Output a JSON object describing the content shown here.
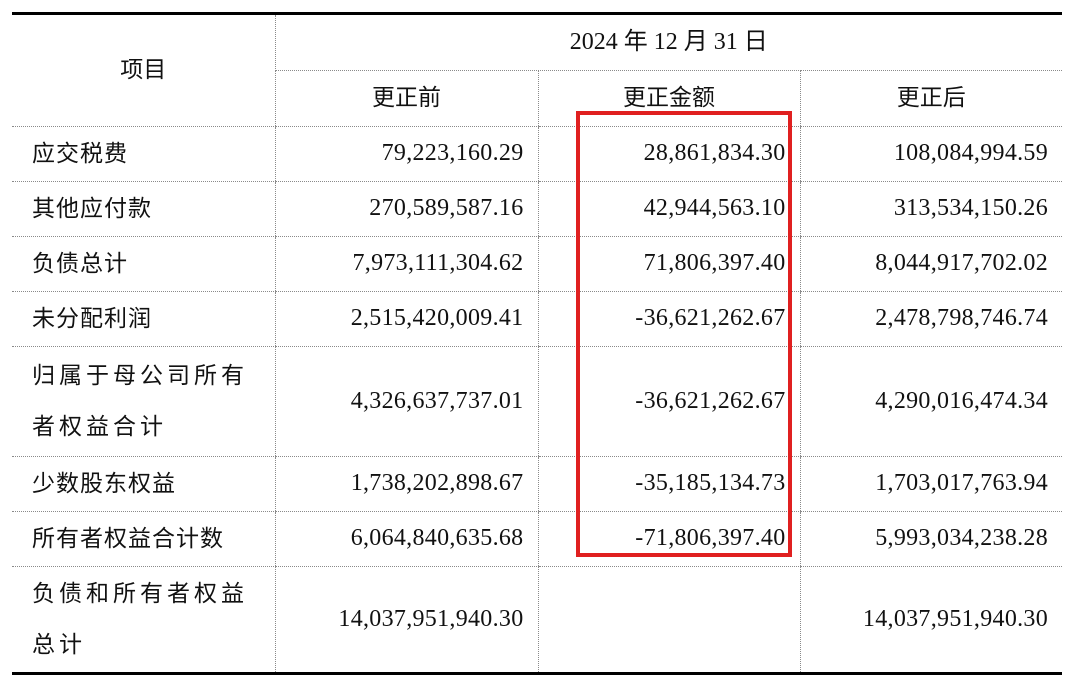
{
  "table": {
    "header": {
      "item_label": "项目",
      "date_label": "2024 年 12 月 31 日",
      "columns": [
        "更正前",
        "更正金额",
        "更正后"
      ]
    },
    "rows": [
      {
        "label": "应交税费",
        "before": "79,223,160.29",
        "adjustment": "28,861,834.30",
        "after": "108,084,994.59"
      },
      {
        "label": "其他应付款",
        "before": "270,589,587.16",
        "adjustment": "42,944,563.10",
        "after": "313,534,150.26"
      },
      {
        "label": "负债总计",
        "before": "7,973,111,304.62",
        "adjustment": "71,806,397.40",
        "after": "8,044,917,702.02"
      },
      {
        "label": "未分配利润",
        "before": "2,515,420,009.41",
        "adjustment": "-36,621,262.67",
        "after": "2,478,798,746.74"
      },
      {
        "label": "归属于母公司所有者权益合计",
        "before": "4,326,637,737.01",
        "adjustment": "-36,621,262.67",
        "after": "4,290,016,474.34"
      },
      {
        "label": "少数股东权益",
        "before": "1,738,202,898.67",
        "adjustment": "-35,185,134.73",
        "after": "1,703,017,763.94"
      },
      {
        "label": "所有者权益合计数",
        "before": "6,064,840,635.68",
        "adjustment": "-71,806,397.40",
        "after": "5,993,034,238.28"
      },
      {
        "label": "负债和所有者权益总计",
        "before": "14,037,951,940.30",
        "adjustment": "",
        "after": "14,037,951,940.30"
      }
    ]
  },
  "colors": {
    "highlight": "#e02020",
    "rule": "#000000",
    "dotted_rule": "#8a8a8a"
  }
}
